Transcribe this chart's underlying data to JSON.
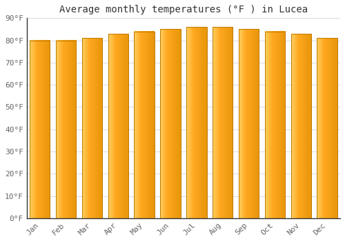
{
  "months": [
    "Jan",
    "Feb",
    "Mar",
    "Apr",
    "May",
    "Jun",
    "Jul",
    "Aug",
    "Sep",
    "Oct",
    "Nov",
    "Dec"
  ],
  "values": [
    80,
    80,
    81,
    83,
    84,
    85,
    86,
    86,
    85,
    84,
    83,
    81
  ],
  "title": "Average monthly temperatures (°F ) in Lucea",
  "ylim": [
    0,
    90
  ],
  "yticks": [
    0,
    10,
    20,
    30,
    40,
    50,
    60,
    70,
    80,
    90
  ],
  "background_color": "#ffffff",
  "plot_bg_color": "#ffffff",
  "grid_color": "#dddddd",
  "bar_color_left": "#FFD060",
  "bar_color_center": "#FFA820",
  "bar_color_right": "#E8960A",
  "bar_edge_color": "#C07800",
  "title_fontsize": 10,
  "tick_fontsize": 8,
  "bar_width": 0.78,
  "spine_color": "#333333"
}
